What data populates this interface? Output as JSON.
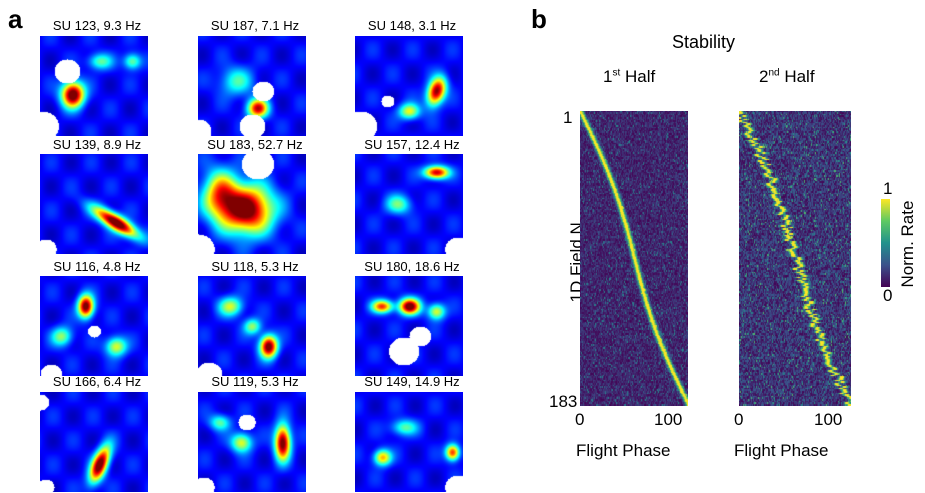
{
  "panel_a": {
    "letter": "a",
    "units": [
      "SU 123, 9.3 Hz",
      "SU 187, 7.1 Hz",
      "SU 148, 3.1 Hz",
      "SU 139, 8.9 Hz",
      "SU 183, 52.7 Hz",
      "SU 157, 12.4 Hz",
      "SU 116, 4.8 Hz",
      "SU 118, 5.3 Hz",
      "SU 180, 18.6 Hz",
      "SU 166, 6.4 Hz",
      "SU 119, 5.3 Hz",
      "SU 149, 14.9 Hz"
    ]
  },
  "panel_b": {
    "letter": "b",
    "title": "Stability",
    "half1_base": "1",
    "half1_sup": "st",
    "half1_rest": " Half",
    "half2_base": "2",
    "half2_sup": "nd",
    "half2_rest": " Half",
    "ylabel": "1D Field N.",
    "ytick_top": "1",
    "ytick_bottom": "183",
    "xlabel_left": "Flight Phase",
    "xlabel_right": "Flight Phase",
    "xtick_0_left": "0",
    "xtick_100_left": "100",
    "xtick_0_right": "0",
    "xtick_100_right": "100",
    "colorbar_label": "Norm. Rate",
    "colorbar_max": "1",
    "colorbar_min": "0",
    "colormap": [
      "#440154",
      "#3b528b",
      "#21918c",
      "#5ec962",
      "#fde725"
    ]
  },
  "chart_data": [
    {
      "type": "heatmap",
      "title": "1st Half",
      "xlabel": "Flight Phase",
      "ylabel": "1D Field N.",
      "xlim": [
        0,
        100
      ],
      "ylim": [
        1,
        183
      ],
      "n_fields": 183,
      "colorbar": {
        "label": "Norm. Rate",
        "range": [
          0,
          1
        ]
      },
      "peak_phase": {
        "field_1": 0,
        "field_183": 100,
        "trend": "sorted ascending by peak phase"
      }
    },
    {
      "type": "heatmap",
      "title": "2nd Half",
      "xlabel": "Flight Phase",
      "ylabel": "1D Field N.",
      "xlim": [
        0,
        100
      ],
      "ylim": [
        1,
        183
      ],
      "n_fields": 183,
      "colorbar": {
        "label": "Norm. Rate",
        "range": [
          0,
          1
        ]
      },
      "peak_phase": {
        "field_1": 0,
        "field_183": 100,
        "trend": "same ordering as 1st Half"
      }
    }
  ]
}
